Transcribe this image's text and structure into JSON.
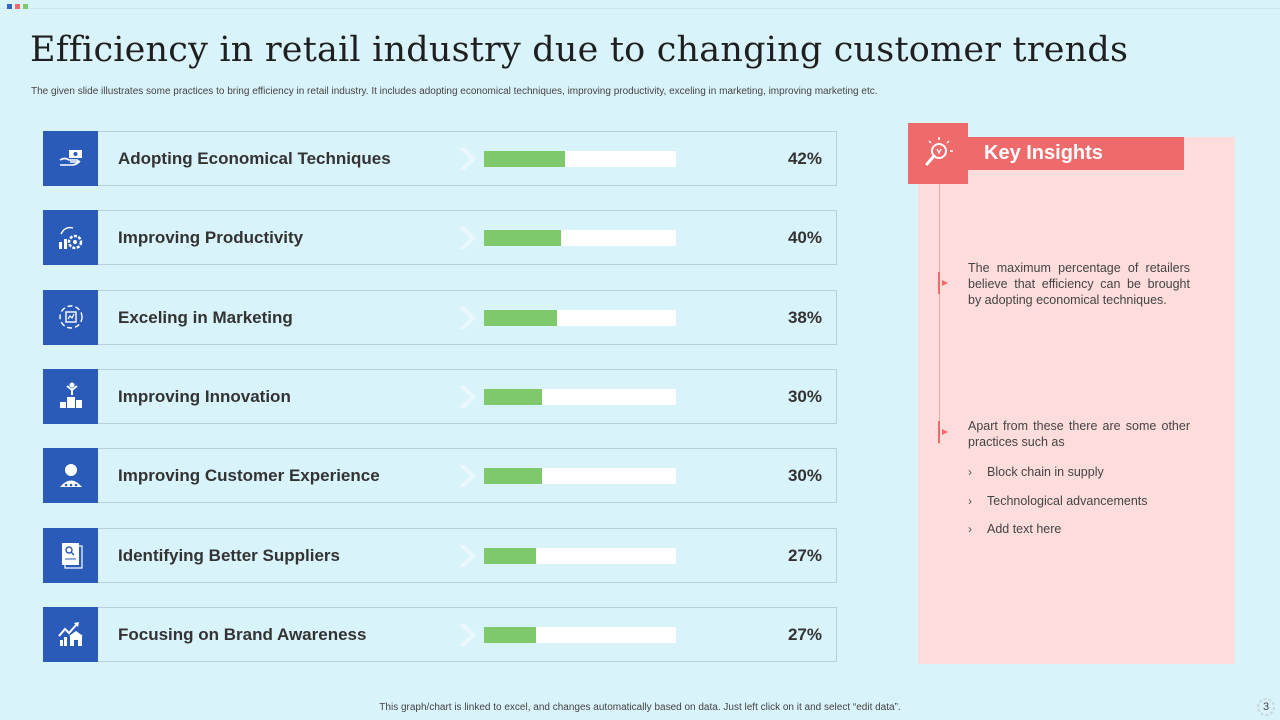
{
  "title": "Efficiency in retail industry due to changing customer trends",
  "subtitle": "The given slide illustrates some practices to bring efficiency in retail industry. It includes adopting economical techniques, improving productivity, exceling in marketing, improving marketing etc.",
  "chart_data": {
    "type": "bar",
    "title": "",
    "xlabel": "",
    "ylabel": "",
    "ylim": [
      0,
      100
    ],
    "categories": [
      "Adopting Economical Techniques",
      "Improving Productivity",
      "Exceling in Marketing",
      "Improving Innovation",
      "Improving Customer Experience",
      "Identifying Better  Suppliers",
      "Focusing on Brand Awareness"
    ],
    "values": [
      42,
      40,
      38,
      30,
      30,
      27,
      27
    ],
    "value_labels": [
      "42%",
      "40%",
      "38%",
      "30%",
      "30%",
      "27%",
      "27%"
    ],
    "icons": [
      "money-hand-icon",
      "productivity-gauge-icon",
      "marketing-cycle-icon",
      "innovation-podium-icon",
      "customer-experience-icon",
      "supplier-document-icon",
      "brand-growth-icon"
    ],
    "colors": {
      "fill": "#7dc96b",
      "track": "#ffffff",
      "icon_bg": "#2b5bb8"
    }
  },
  "insights": {
    "header": "Key Insights",
    "point1": "The maximum percentage of retailers believe that efficiency can be brought by adopting economical techniques.",
    "point2": "Apart from these there are some other practices such as",
    "bullets": [
      "Block chain in supply",
      "Technological advancements",
      "Add text here"
    ],
    "colors": {
      "accent": "#ef6b6b",
      "panel": "#fddcdc"
    }
  },
  "footer": "This graph/chart is linked to excel, and changes automatically based on data. Just left click on it and select “edit data”.",
  "page_number": "3",
  "colors": {
    "background": "#d9f3fb",
    "brand_blue": "#2b5bb8"
  }
}
